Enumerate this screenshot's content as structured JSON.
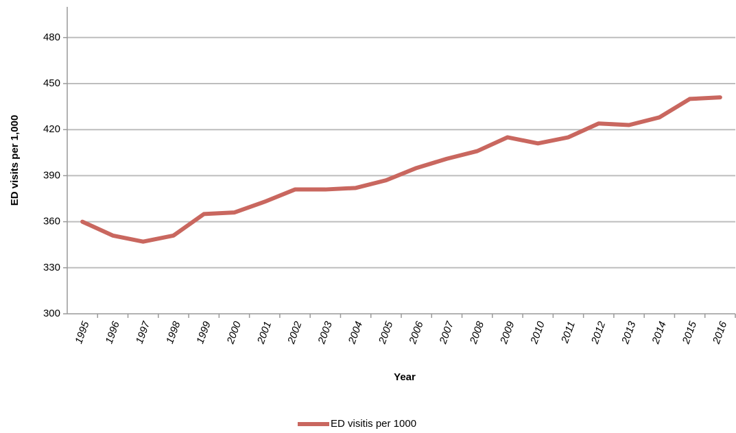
{
  "chart_data": {
    "type": "line",
    "x_label": "Year",
    "y_label": "ED visits per 1,000",
    "categories": [
      "1995",
      "1996",
      "1997",
      "1998",
      "1999",
      "2000",
      "2001",
      "2002",
      "2003",
      "2004",
      "2005",
      "2006",
      "2007",
      "2008",
      "2009",
      "2010",
      "2011",
      "2012",
      "2013",
      "2014",
      "2015",
      "2016"
    ],
    "series": [
      {
        "name": "ED visitis per 1000",
        "color": "#c9675f",
        "values": [
          360,
          351,
          347,
          351,
          365,
          366,
          373,
          381,
          381,
          382,
          387,
          395,
          401,
          406,
          415,
          411,
          415,
          424,
          423,
          428,
          440,
          441
        ]
      }
    ],
    "ylim": [
      300,
      500
    ],
    "yticks": [
      300,
      330,
      360,
      390,
      420,
      450,
      480
    ],
    "grid": true,
    "legend": "bottom"
  }
}
